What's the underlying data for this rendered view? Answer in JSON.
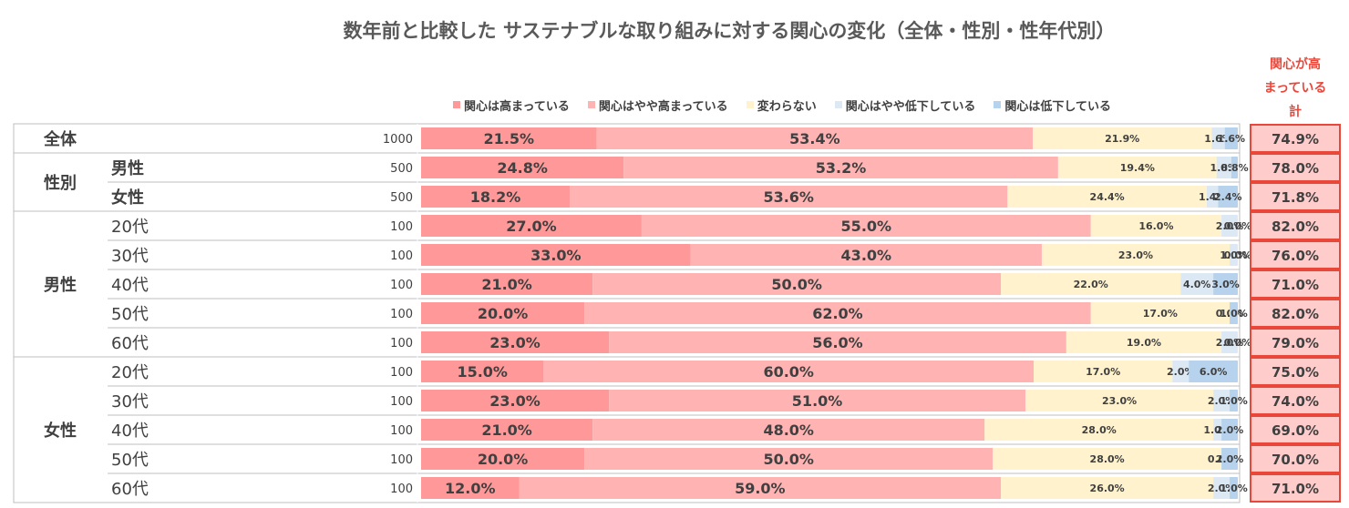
{
  "title": "数年前と比較した サステナブルな取り組みに対する関心の変化（全体・性別・性年代別）",
  "total_header": [
    "関心が高",
    "まっている",
    "計"
  ],
  "colors": {
    "s1": "#ff9999",
    "s2": "#ffb3b3",
    "s3": "#fff2cc",
    "s4": "#dce9f5",
    "s5": "#b7d2ec",
    "total_fill": "#ffcccc",
    "total_border": "#e8473a",
    "grid": "#bfbfbf"
  },
  "chart_data": {
    "type": "bar",
    "orientation": "horizontal",
    "stacked": "100%",
    "title": "数年前と比較した サステナブルな取り組みに対する関心の変化（全体・性別・性年代別）",
    "legend_position": "top",
    "series": [
      {
        "name": "関心は高まっている",
        "color_key": "s1",
        "values": [
          21.5,
          24.8,
          18.2,
          27.0,
          33.0,
          21.0,
          20.0,
          23.0,
          15.0,
          23.0,
          21.0,
          20.0,
          12.0
        ]
      },
      {
        "name": "関心はやや高まっている",
        "color_key": "s2",
        "values": [
          53.4,
          53.2,
          53.6,
          55.0,
          43.0,
          50.0,
          62.0,
          56.0,
          60.0,
          51.0,
          48.0,
          50.0,
          59.0
        ]
      },
      {
        "name": "変わらない",
        "color_key": "s3",
        "values": [
          21.9,
          19.4,
          24.4,
          16.0,
          23.0,
          22.0,
          17.0,
          19.0,
          17.0,
          23.0,
          28.0,
          28.0,
          26.0
        ]
      },
      {
        "name": "関心はやや低下している",
        "color_key": "s4",
        "values": [
          1.6,
          1.8,
          1.4,
          2.0,
          1.0,
          4.0,
          0.0,
          2.0,
          2.0,
          2.0,
          1.0,
          0.0,
          2.0
        ]
      },
      {
        "name": "関心は低下している",
        "color_key": "s5",
        "values": [
          1.6,
          0.8,
          2.4,
          0.0,
          0.0,
          3.0,
          1.0,
          0.0,
          6.0,
          1.0,
          2.0,
          2.0,
          1.0
        ]
      }
    ],
    "rows": [
      {
        "group": "全体",
        "label": "",
        "n": 1000,
        "total": "74.9%"
      },
      {
        "group": "性別",
        "label": "男性",
        "n": 500,
        "total": "78.0%"
      },
      {
        "group": "",
        "label": "女性",
        "n": 500,
        "total": "71.8%"
      },
      {
        "group": "男性",
        "label": "20代",
        "n": 100,
        "total": "82.0%"
      },
      {
        "group": "",
        "label": "30代",
        "n": 100,
        "total": "76.0%"
      },
      {
        "group": "",
        "label": "40代",
        "n": 100,
        "total": "71.0%"
      },
      {
        "group": "",
        "label": "50代",
        "n": 100,
        "total": "82.0%"
      },
      {
        "group": "",
        "label": "60代",
        "n": 100,
        "total": "79.0%"
      },
      {
        "group": "女性",
        "label": "20代",
        "n": 100,
        "total": "75.0%"
      },
      {
        "group": "",
        "label": "30代",
        "n": 100,
        "total": "74.0%"
      },
      {
        "group": "",
        "label": "40代",
        "n": 100,
        "total": "69.0%"
      },
      {
        "group": "",
        "label": "50代",
        "n": 100,
        "total": "70.0%"
      },
      {
        "group": "",
        "label": "60代",
        "n": 100,
        "total": "71.0%"
      }
    ],
    "groups": [
      {
        "name": "全体",
        "start": 0,
        "end": 0
      },
      {
        "name": "性別",
        "start": 1,
        "end": 2
      },
      {
        "name": "男性",
        "start": 3,
        "end": 7
      },
      {
        "name": "女性",
        "start": 8,
        "end": 12
      }
    ],
    "xlim": [
      0,
      100
    ]
  }
}
